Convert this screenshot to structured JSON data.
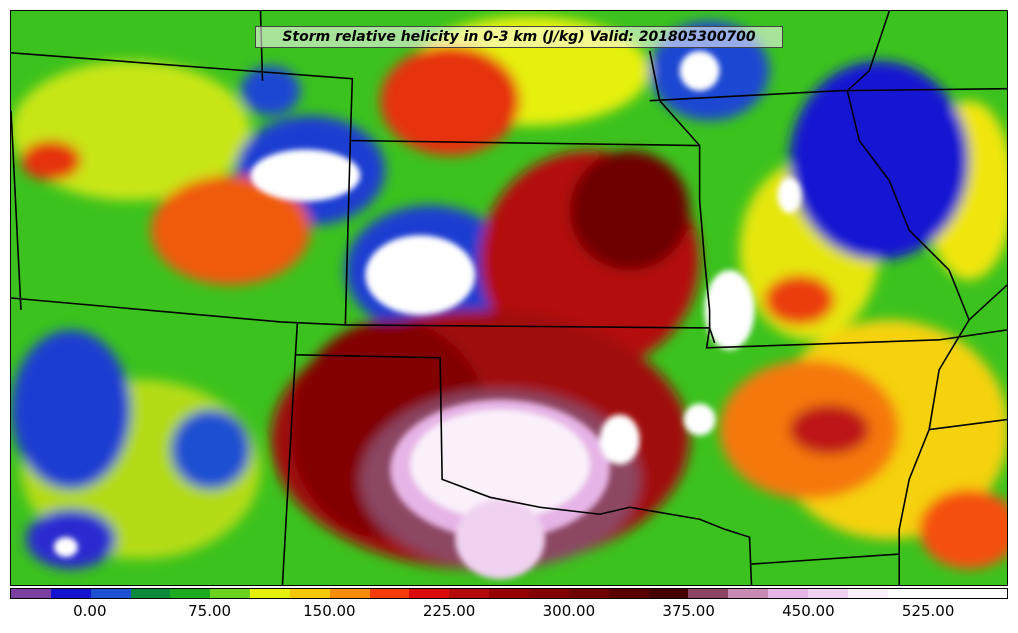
{
  "map": {
    "title": "Storm relative helicity in 0-3 km (J/kg) Valid: 201805300700",
    "variable": "Storm relative helicity in 0-3 km",
    "units": "J/kg",
    "valid_time": "201805300700",
    "boundaries": "state-borders",
    "colorbar": {
      "tick_labels": [
        "0.00",
        "75.00",
        "150.00",
        "225.00",
        "300.00",
        "375.00",
        "450.00",
        "525.00"
      ],
      "tick_values": [
        0,
        75,
        150,
        225,
        300,
        375,
        450,
        525
      ],
      "range": [
        -50,
        575
      ],
      "colors": [
        "#7a3fa0",
        "#1414d2",
        "#1e50d2",
        "#0a8a3a",
        "#1eaa1e",
        "#6ad21e",
        "#e6f00a",
        "#f5c80a",
        "#f58c0a",
        "#f53c0a",
        "#dc0a0a",
        "#b40a0a",
        "#960000",
        "#820000",
        "#6e0000",
        "#5a0000",
        "#460000",
        "#8c4664",
        "#c88cb4",
        "#e6b4e6",
        "#f0d2f0",
        "#faf0fa",
        "#ffffff",
        "#ffffff",
        "#ffffff"
      ]
    }
  }
}
